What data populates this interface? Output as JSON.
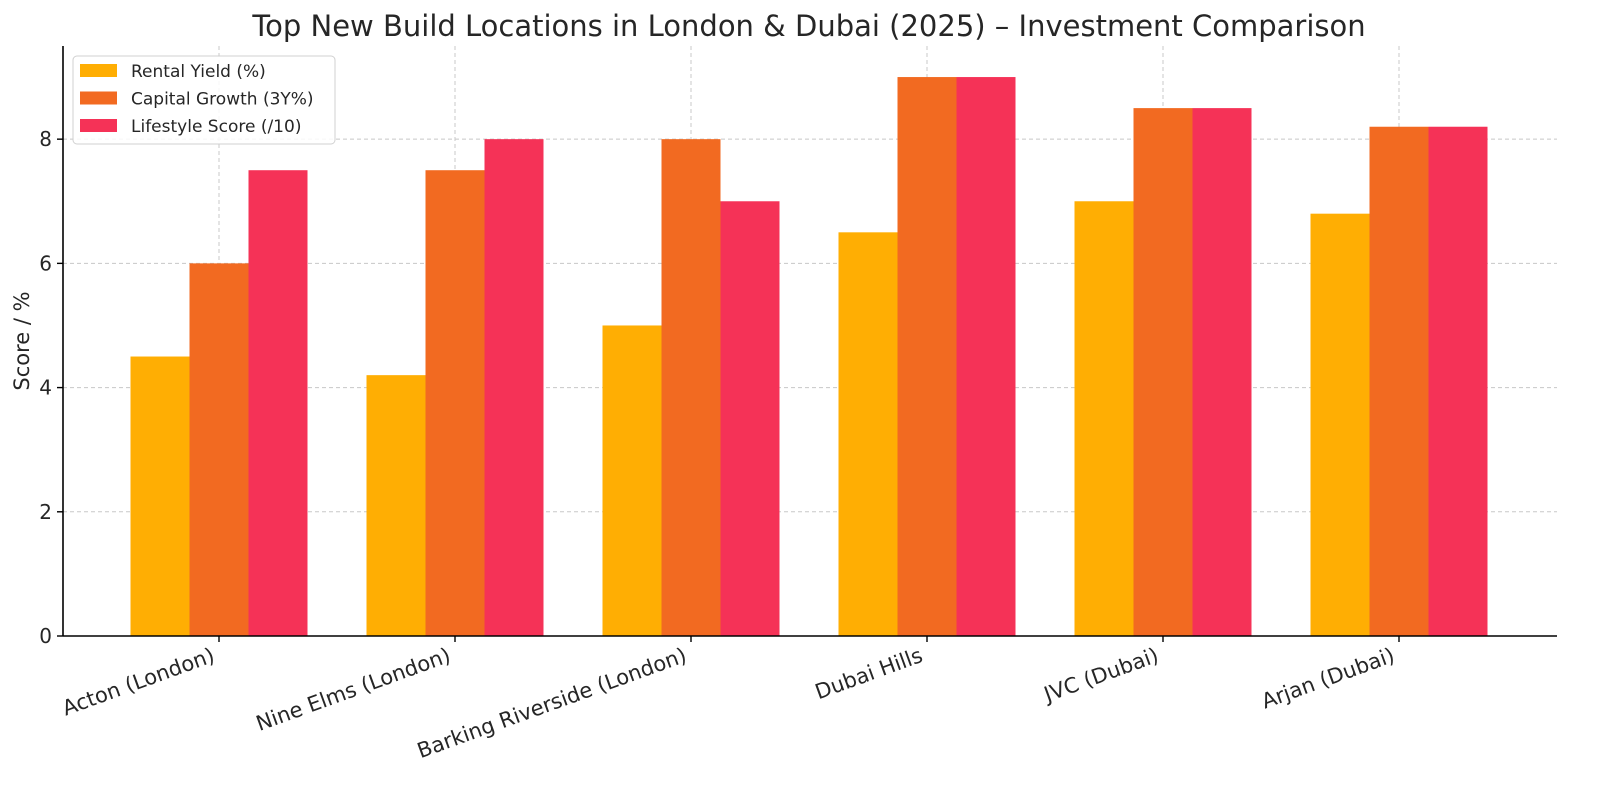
{
  "chart_data": {
    "type": "bar",
    "title": "Top New Build Locations in London & Dubai (2025) – Investment Comparison",
    "xlabel": "",
    "ylabel": "Score / %",
    "categories": [
      "Acton (London)",
      "Nine Elms (London)",
      "Barking Riverside (London)",
      "Dubai Hills",
      "JVC (Dubai)",
      "Arjan (Dubai)"
    ],
    "series": [
      {
        "name": "Rental Yield (%)",
        "color": "#FFAE03",
        "values": [
          4.5,
          4.2,
          5.0,
          6.5,
          7.0,
          6.8
        ]
      },
      {
        "name": "Capital Growth (3Y%)",
        "color": "#F26A21",
        "values": [
          6.0,
          7.5,
          8.0,
          9.0,
          8.5,
          8.2
        ]
      },
      {
        "name": "Lifestyle Score (/10)",
        "color": "#F53257",
        "values": [
          7.5,
          8.0,
          7.0,
          9.0,
          8.5,
          8.2
        ]
      }
    ],
    "ylim": [
      0,
      9.5
    ],
    "yticks": [
      0,
      2,
      4,
      6,
      8
    ],
    "grid": true,
    "legend_position": "top-left"
  }
}
